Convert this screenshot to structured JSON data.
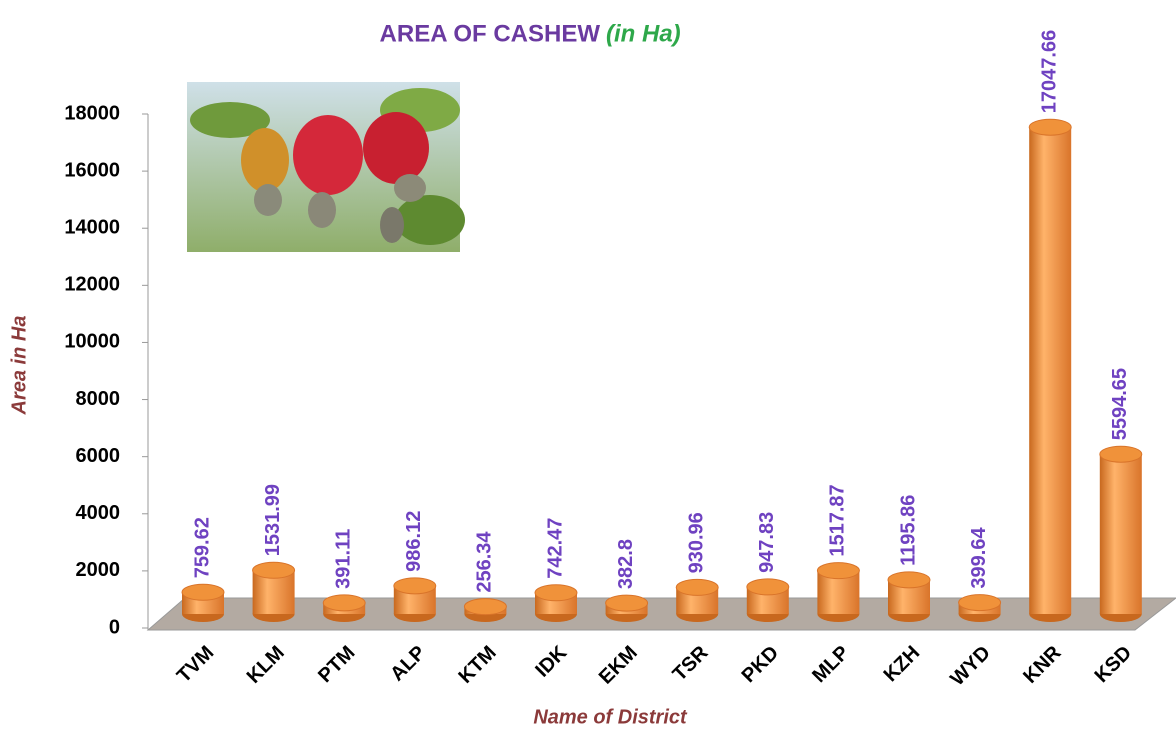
{
  "chart_data": {
    "type": "bar",
    "title": "AREA OF CASHEW",
    "subtitle": "(in Ha)",
    "x_label": "Name of District",
    "y_label": "Area in Ha",
    "categories": [
      "TVM",
      "KLM",
      "PTM",
      "ALP",
      "KTM",
      "IDK",
      "EKM",
      "TSR",
      "PKD",
      "MLP",
      "KZH",
      "WYD",
      "KNR",
      "KSD"
    ],
    "values": [
      759.62,
      1531.99,
      391.11,
      986.12,
      256.34,
      742.47,
      382.8,
      930.96,
      947.83,
      1517.87,
      1195.86,
      399.64,
      17047.66,
      5594.65
    ],
    "color": "#f0923a",
    "ylim": [
      0,
      18000
    ],
    "yticks": [
      0,
      2000,
      4000,
      6000,
      8000,
      10000,
      12000,
      14000,
      16000,
      18000
    ]
  }
}
